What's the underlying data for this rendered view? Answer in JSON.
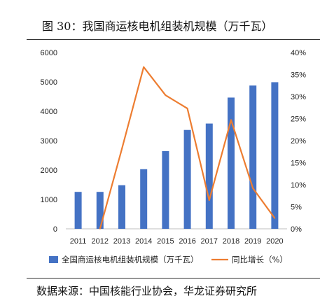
{
  "figure": {
    "title": "图 30：我国商运核电机组装机规模（万千瓦）",
    "source": "数据来源：中国核能行业协会，华龙证券研究所"
  },
  "chart_data": {
    "type": "bar",
    "categories": [
      "2011",
      "2012",
      "2013",
      "2014",
      "2015",
      "2016",
      "2017",
      "2018",
      "2019",
      "2020"
    ],
    "series": [
      {
        "name": "全国商运核电机组装机规模（万千瓦）",
        "type": "bar",
        "axis": "left",
        "color": "#4472C4",
        "values": [
          1257,
          1257,
          1484,
          2029,
          2643,
          3364,
          3582,
          4466,
          4875,
          4989
        ]
      },
      {
        "name": "同比增长（%）",
        "type": "line",
        "axis": "right",
        "color": "#ED7D31",
        "values": [
          null,
          0.0,
          18.1,
          36.7,
          30.3,
          27.3,
          6.5,
          24.7,
          9.2,
          2.4
        ]
      }
    ],
    "y_left": {
      "min": 0,
      "max": 6000,
      "ticks": [
        "0",
        "1000",
        "2000",
        "3000",
        "4000",
        "5000",
        "6000"
      ]
    },
    "y_right": {
      "min": 0,
      "max": 40,
      "ticks": [
        "0%",
        "5%",
        "10%",
        "15%",
        "20%",
        "25%",
        "30%",
        "35%",
        "40%"
      ]
    },
    "legend": {
      "position": "bottom",
      "items": [
        "全国商运核电机组装机规模（万千瓦）",
        "同比增长（%）"
      ]
    },
    "grid": false
  }
}
